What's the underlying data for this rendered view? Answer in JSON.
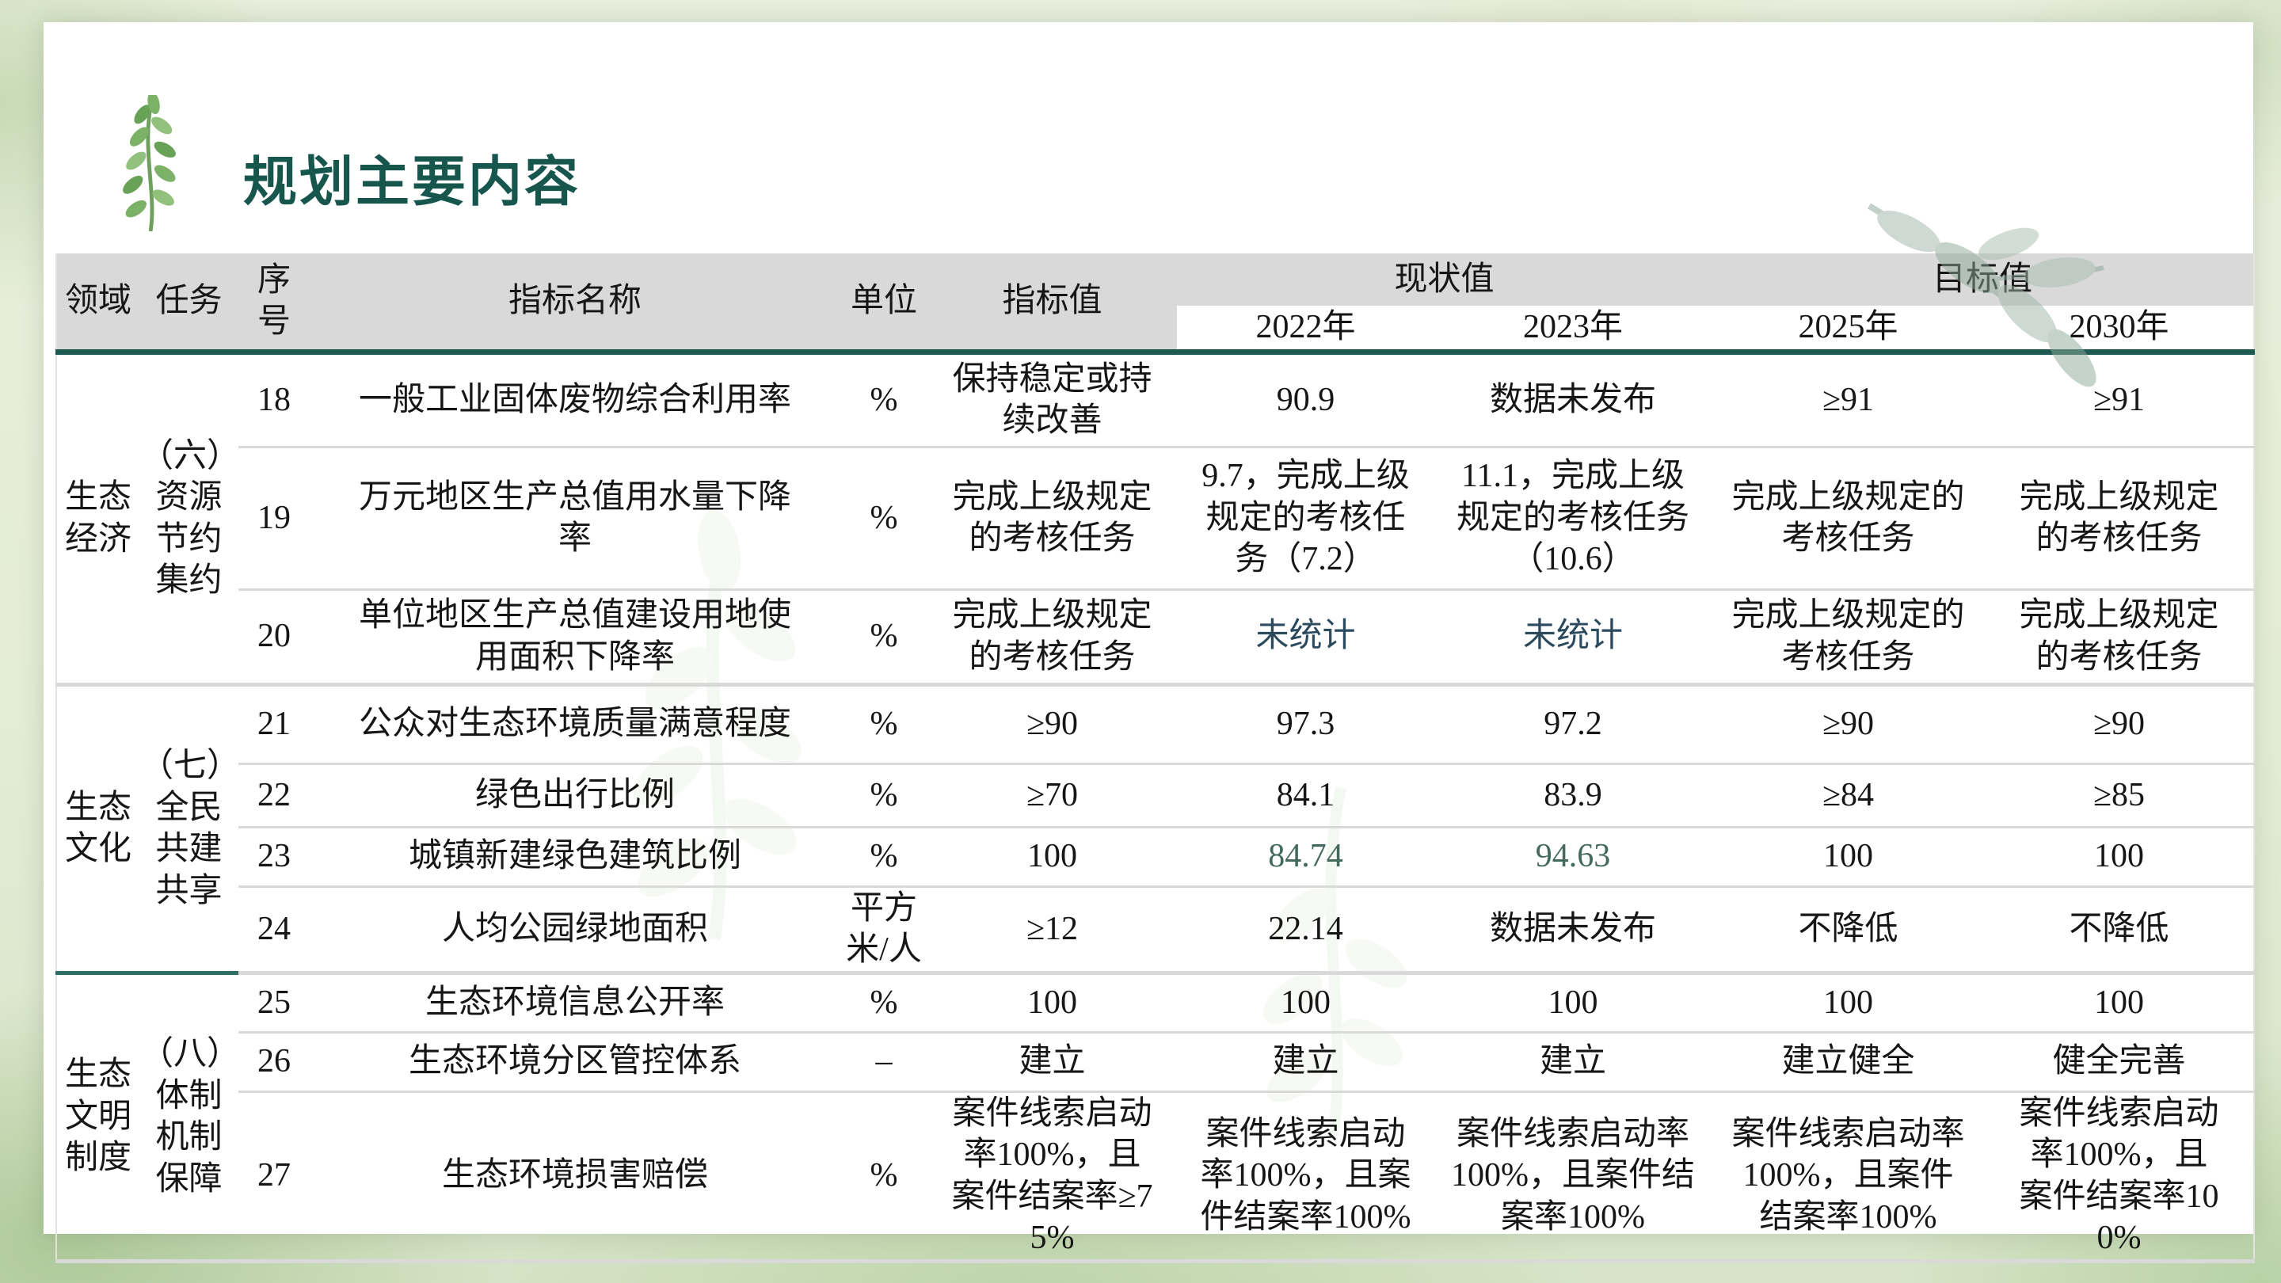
{
  "title": "规划主要内容",
  "colors": {
    "accent_teal": "#1d5a52",
    "group_teal_line": "#2f6e65",
    "header_gray": "#d9d9d9",
    "unstat_slate": "#2b4a5e",
    "highlight_green": "#436a5d",
    "title_color": "#17564d"
  },
  "icons": {
    "title_leaf": "watercolor-branch-icon",
    "corner_leaf": "faint-leaf-decoration"
  },
  "table": {
    "headers": {
      "field": "领域",
      "task": "任务",
      "no": "序\n号",
      "indicator": "指标名称",
      "unit": "单位",
      "value": "指标值",
      "current": "现状值",
      "goal": "目标值",
      "years": [
        "2022年",
        "2023年",
        "2025年",
        "2030年"
      ]
    },
    "groups": [
      {
        "field": "生态\n经济",
        "task": "（六）\n资源\n节约\n集约",
        "rows": [
          {
            "no": "18",
            "name": "一般工业固体废物综合利用率",
            "unit": "%",
            "value": "保持稳定或持续改善",
            "y2022": "90.9",
            "y2023": "数据未发布",
            "y2025": "≥91",
            "y2030": "≥91"
          },
          {
            "no": "19",
            "name": "万元地区生产总值用水量下降率",
            "unit": "%",
            "value": "完成上级规定的考核任务",
            "y2022": "9.7，完成上级规定的考核任务（7.2）",
            "y2023": "11.1，完成上级规定的考核任务（10.6）",
            "y2025": "完成上级规定的考核任务",
            "y2030": "完成上级规定的考核任务"
          },
          {
            "no": "20",
            "name": "单位地区生产总值建设用地使用面积下降率",
            "unit": "%",
            "value": "完成上级规定的考核任务",
            "y2022": "未统计",
            "y2023": "未统计",
            "y2025": "完成上级规定的考核任务",
            "y2030": "完成上级规定的考核任务",
            "c2022": "slate",
            "c2023": "slate"
          }
        ]
      },
      {
        "field": "生态\n文化",
        "task": "（七）\n全民\n共建\n共享",
        "rows": [
          {
            "no": "21",
            "name": "公众对生态环境质量满意程度",
            "unit": "%",
            "value": "≥90",
            "y2022": "97.3",
            "y2023": "97.2",
            "y2025": "≥90",
            "y2030": "≥90"
          },
          {
            "no": "22",
            "name": "绿色出行比例",
            "unit": "%",
            "value": "≥70",
            "y2022": "84.1",
            "y2023": "83.9",
            "y2025": "≥84",
            "y2030": "≥85"
          },
          {
            "no": "23",
            "name": "城镇新建绿色建筑比例",
            "unit": "%",
            "value": "100",
            "y2022": "84.74",
            "y2023": "94.63",
            "y2025": "100",
            "y2030": "100",
            "c2022": "green",
            "c2023": "green"
          },
          {
            "no": "24",
            "name": "人均公园绿地面积",
            "unit": "平方米/人",
            "value": "≥12",
            "y2022": "22.14",
            "y2023": "数据未发布",
            "y2025": "不降低",
            "y2030": "不降低"
          }
        ]
      },
      {
        "field": "生态\n文明\n制度",
        "task": "（八）\n体制\n机制\n保障",
        "rows": [
          {
            "no": "25",
            "name": "生态环境信息公开率",
            "unit": "%",
            "value": "100",
            "y2022": "100",
            "y2023": "100",
            "y2025": "100",
            "y2030": "100"
          },
          {
            "no": "26",
            "name": "生态环境分区管控体系",
            "unit": "–",
            "value": "建立",
            "y2022": "建立",
            "y2023": "建立",
            "y2025": "建立健全",
            "y2030": "健全完善"
          },
          {
            "no": "27",
            "name": "生态环境损害赔偿",
            "unit": "%",
            "value": "案件线索启动率100%，且案件结案率≥75%",
            "y2022": "案件线索启动率100%，且案件结案率100%",
            "y2023": "案件线索启动率100%，且案件结案率100%",
            "y2025": "案件线索启动率100%，且案件结案率100%",
            "y2030": "案件线索启动率100%，且案件结案率100%"
          }
        ]
      }
    ]
  }
}
